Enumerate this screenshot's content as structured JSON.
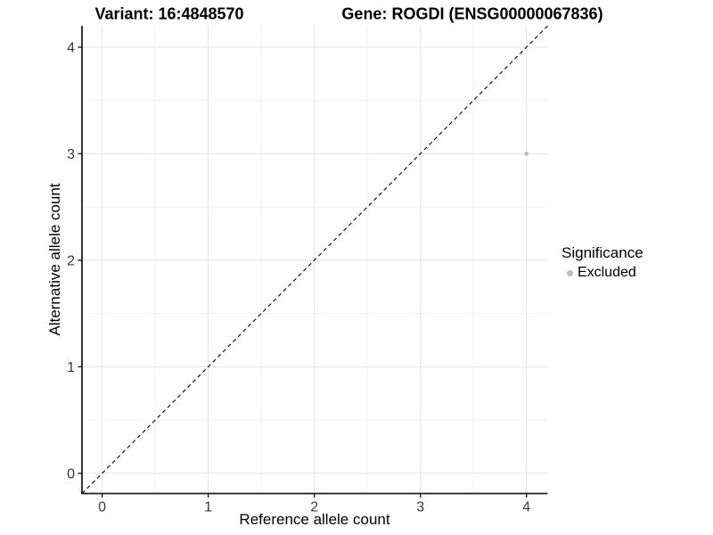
{
  "header": {
    "title_left": "Variant: 16:4848570",
    "title_right": "Gene: ROGDI (ENSG00000067836)"
  },
  "chart_data": {
    "type": "scatter",
    "xlabel": "Reference allele count",
    "ylabel": "Alternative allele count",
    "xlim": [
      -0.19,
      4.2
    ],
    "ylim": [
      -0.19,
      4.2
    ],
    "xticks": [
      0,
      1,
      2,
      3,
      4
    ],
    "xtick_labels": [
      "0",
      "1",
      "2",
      "3",
      "4"
    ],
    "yticks": [
      0,
      1,
      2,
      3,
      4
    ],
    "ytick_labels": [
      "0",
      "1",
      "2",
      "3",
      "4"
    ],
    "grid": "on",
    "minor_grid_step": 0.5,
    "identity_line": {
      "slope": 1,
      "intercept": 0,
      "style": "dashed",
      "color": "#141414"
    },
    "points": [
      {
        "x": 4,
        "y": 3,
        "series": "Excluded",
        "color": "#bdbdbd",
        "radius": 2.3
      }
    ],
    "legend": {
      "title": "Significance",
      "position": "right",
      "items": [
        {
          "label": "Excluded",
          "color": "#bdbdbd"
        }
      ]
    }
  },
  "colors": {
    "background": "#ffffff",
    "grid_major": "#e4e4e4",
    "grid_minor": "#f1f1f1",
    "axis_line": "#1f1f1f",
    "tick_mark": "#1f1f1f",
    "tick_label": "#383838",
    "point": "#bdbdbd"
  }
}
